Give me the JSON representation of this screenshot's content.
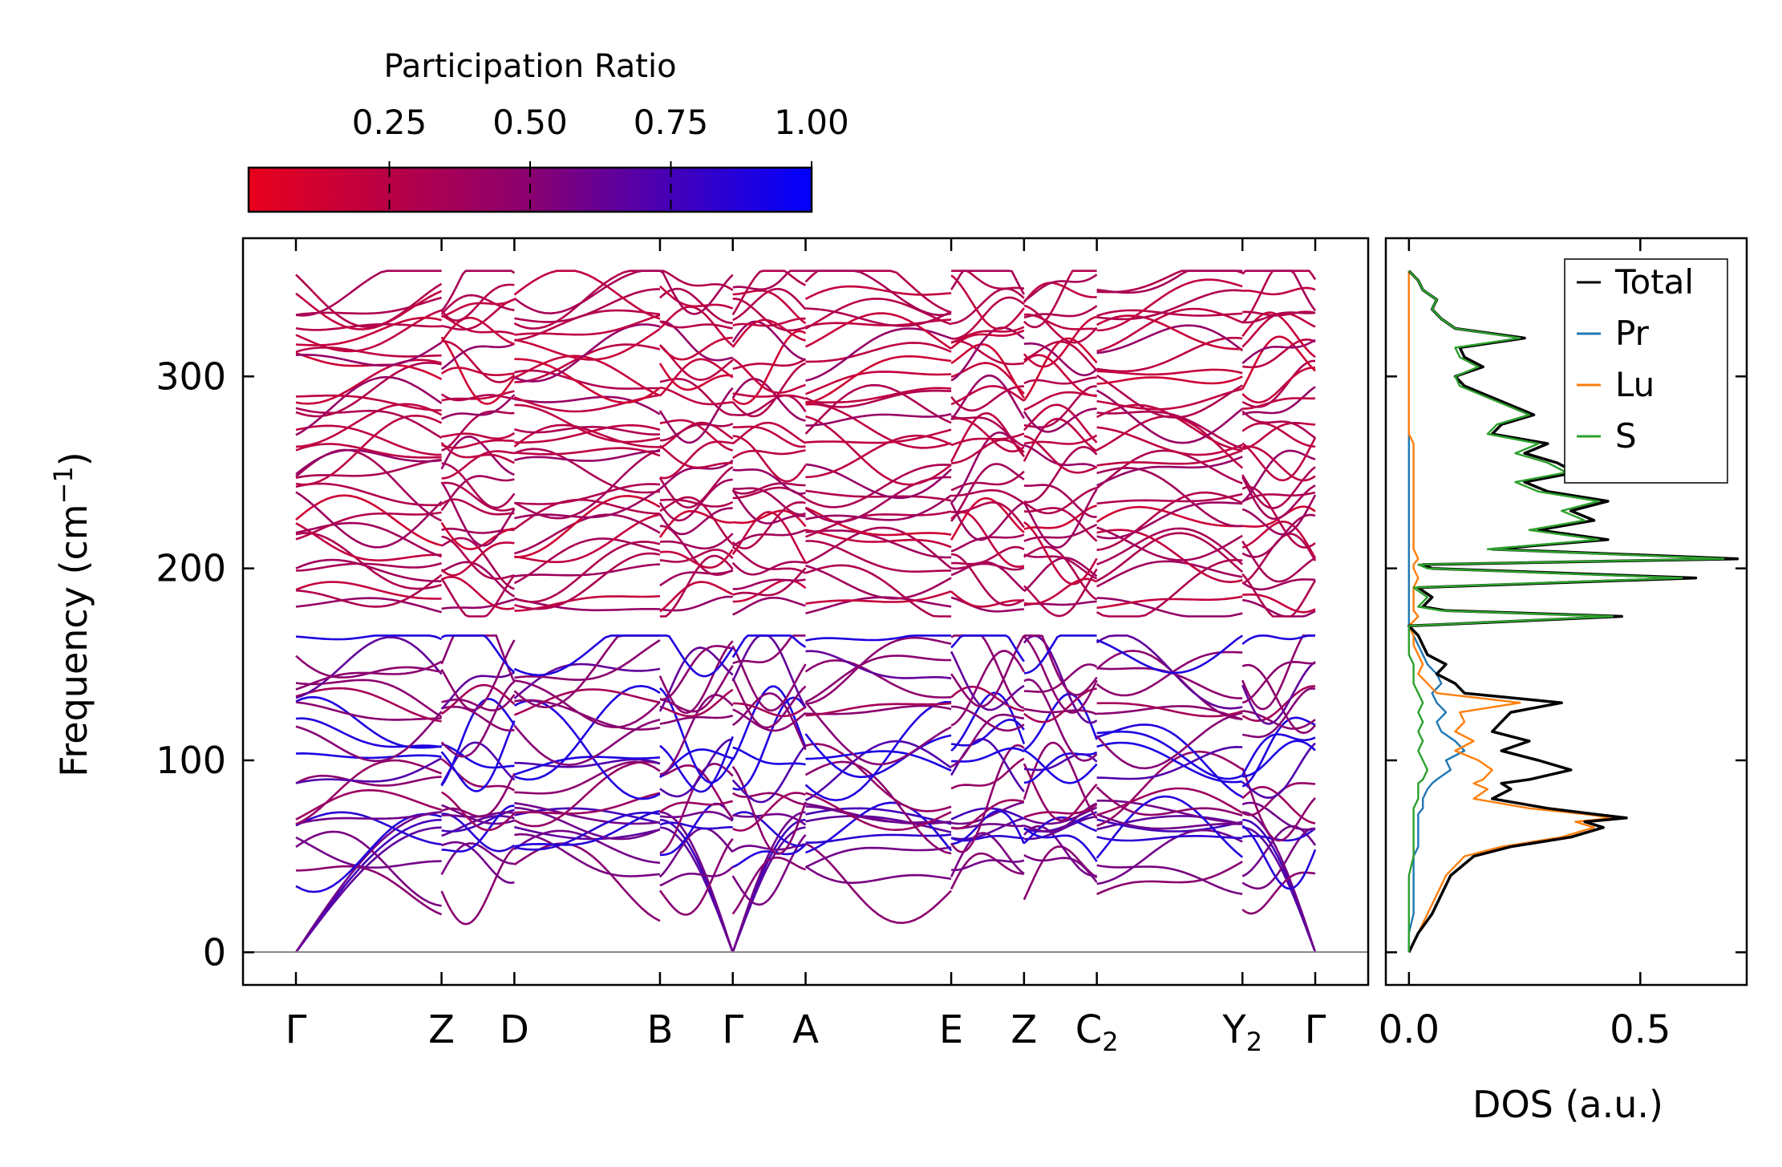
{
  "chart_data": {
    "type": "line",
    "colorbar": {
      "title": "Participation Ratio",
      "ticks": [
        "0.25",
        "0.50",
        "0.75",
        "1.00"
      ],
      "tick_values": [
        0.25,
        0.5,
        0.75,
        1.0
      ],
      "range": [
        0.0,
        1.0
      ],
      "color_low": "#e8001c",
      "color_mid": "#8a0070",
      "color_high": "#0000ff"
    },
    "bands": {
      "ylabel": "Frequency (cm",
      "ylabel_sup": "−1",
      "ylabel_close": ")",
      "ylim": [
        -17,
        372
      ],
      "yticks": [
        0,
        100,
        200,
        300
      ],
      "ytick_labels": [
        "0",
        "100",
        "200",
        "300"
      ],
      "kpoints": [
        {
          "label": "Γ",
          "sub": "",
          "x": 0.0
        },
        {
          "label": "Z",
          "sub": "",
          "x": 1.0
        },
        {
          "label": "D",
          "sub": "",
          "x": 1.5
        },
        {
          "label": "B",
          "sub": "",
          "x": 2.5
        },
        {
          "label": "Γ",
          "sub": "",
          "x": 3.0
        },
        {
          "label": "A",
          "sub": "",
          "x": 3.5
        },
        {
          "label": "E",
          "sub": "",
          "x": 4.5
        },
        {
          "label": "Z",
          "sub": "",
          "x": 5.0
        },
        {
          "label": "C",
          "sub": "2",
          "x": 5.5
        },
        {
          "label": "Y",
          "sub": "2",
          "x": 6.5
        },
        {
          "label": "Γ",
          "sub": "",
          "x": 7.0
        }
      ],
      "segments": [
        {
          "from": "Γ",
          "to": "Z"
        },
        {
          "from": "Z",
          "to": "D"
        },
        {
          "from": "D",
          "to": "B"
        },
        {
          "from": "B",
          "to": "Γ"
        },
        {
          "from": "Γ",
          "to": "A"
        },
        {
          "from": "A",
          "to": "E"
        },
        {
          "from": "E",
          "to": "Z"
        },
        {
          "from": "Z",
          "to": "C2"
        },
        {
          "from": "C2",
          "to": "Y2"
        },
        {
          "from": "Y2",
          "to": "Γ"
        }
      ],
      "low_branch_gamma": [
        0,
        0,
        0
      ],
      "high_group_range": [
        175,
        355
      ],
      "low_group_range": [
        0,
        165
      ],
      "gap": [
        165,
        175
      ]
    },
    "dos": {
      "xlabel": "DOS (a.u.)",
      "xlim": [
        -0.05,
        0.73
      ],
      "xticks": [
        0.0,
        0.5
      ],
      "xtick_labels": [
        "0.0",
        "0.5"
      ],
      "ylim": [
        -17,
        372
      ],
      "legend": [
        {
          "name": "Total",
          "color": "#000000"
        },
        {
          "name": "Pr",
          "color": "#1f77b4"
        },
        {
          "name": "Lu",
          "color": "#ff7f0e"
        },
        {
          "name": "S",
          "color": "#2ca02c"
        }
      ],
      "series": {
        "freq": [
          0,
          10,
          20,
          30,
          40,
          50,
          55,
          60,
          65,
          68,
          70,
          72,
          75,
          80,
          85,
          88,
          90,
          95,
          100,
          105,
          110,
          115,
          120,
          125,
          130,
          135,
          140,
          145,
          150,
          155,
          160,
          165,
          170,
          175,
          178,
          180,
          185,
          190,
          195,
          200,
          202,
          205,
          210,
          215,
          220,
          225,
          230,
          235,
          240,
          245,
          250,
          255,
          260,
          265,
          270,
          275,
          280,
          285,
          290,
          295,
          300,
          305,
          310,
          315,
          320,
          325,
          330,
          335,
          340,
          345,
          350,
          355
        ],
        "Total": [
          0.0,
          0.02,
          0.05,
          0.07,
          0.09,
          0.14,
          0.22,
          0.35,
          0.42,
          0.38,
          0.47,
          0.4,
          0.3,
          0.18,
          0.22,
          0.2,
          0.26,
          0.35,
          0.28,
          0.2,
          0.26,
          0.18,
          0.2,
          0.22,
          0.33,
          0.12,
          0.1,
          0.06,
          0.08,
          0.04,
          0.03,
          0.02,
          0.0,
          0.46,
          0.08,
          0.03,
          0.05,
          0.02,
          0.62,
          0.05,
          0.03,
          0.71,
          0.18,
          0.43,
          0.28,
          0.4,
          0.35,
          0.43,
          0.3,
          0.25,
          0.36,
          0.32,
          0.25,
          0.3,
          0.18,
          0.2,
          0.27,
          0.22,
          0.17,
          0.12,
          0.1,
          0.16,
          0.12,
          0.11,
          0.25,
          0.1,
          0.07,
          0.05,
          0.06,
          0.03,
          0.02,
          0.0
        ],
        "Pr": [
          0.0,
          0.0,
          0.01,
          0.01,
          0.01,
          0.01,
          0.02,
          0.02,
          0.02,
          0.02,
          0.02,
          0.02,
          0.03,
          0.03,
          0.04,
          0.05,
          0.06,
          0.09,
          0.08,
          0.12,
          0.1,
          0.07,
          0.06,
          0.08,
          0.06,
          0.05,
          0.07,
          0.06,
          0.04,
          0.03,
          0.02,
          0.01,
          0.0,
          0.0,
          0.0,
          0.0,
          0.0,
          0.0,
          0.0,
          0.0,
          0.0,
          0.0,
          0.0,
          0.0,
          0.0,
          0.0,
          0.0,
          0.0,
          0.0,
          0.0,
          0.0,
          0.0,
          0.0,
          0.0,
          0.0,
          0.0,
          0.0,
          0.0,
          0.0,
          0.0,
          0.0,
          0.0,
          0.0,
          0.0,
          0.0,
          0.0,
          0.0,
          0.0,
          0.0,
          0.0,
          0.0,
          0.0
        ],
        "Lu": [
          0.0,
          0.02,
          0.04,
          0.06,
          0.08,
          0.12,
          0.2,
          0.33,
          0.4,
          0.36,
          0.44,
          0.38,
          0.26,
          0.14,
          0.17,
          0.14,
          0.16,
          0.18,
          0.15,
          0.1,
          0.14,
          0.1,
          0.12,
          0.11,
          0.24,
          0.06,
          0.04,
          0.02,
          0.03,
          0.02,
          0.01,
          0.01,
          0.0,
          0.02,
          0.01,
          0.01,
          0.01,
          0.01,
          0.02,
          0.01,
          0.01,
          0.02,
          0.01,
          0.01,
          0.01,
          0.01,
          0.01,
          0.01,
          0.01,
          0.01,
          0.01,
          0.01,
          0.01,
          0.01,
          0.0,
          0.0,
          0.0,
          0.0,
          0.0,
          0.0,
          0.0,
          0.0,
          0.0,
          0.0,
          0.0,
          0.0,
          0.0,
          0.0,
          0.0,
          0.0,
          0.0,
          0.0
        ],
        "S": [
          0.0,
          0.0,
          0.0,
          0.0,
          0.0,
          0.01,
          0.01,
          0.01,
          0.01,
          0.01,
          0.01,
          0.01,
          0.01,
          0.02,
          0.02,
          0.02,
          0.03,
          0.04,
          0.03,
          0.02,
          0.03,
          0.02,
          0.03,
          0.02,
          0.03,
          0.02,
          0.01,
          0.01,
          0.01,
          0.0,
          0.0,
          0.0,
          0.0,
          0.44,
          0.07,
          0.02,
          0.04,
          0.01,
          0.59,
          0.04,
          0.02,
          0.68,
          0.17,
          0.41,
          0.26,
          0.38,
          0.33,
          0.41,
          0.28,
          0.23,
          0.34,
          0.3,
          0.23,
          0.28,
          0.17,
          0.19,
          0.26,
          0.21,
          0.16,
          0.11,
          0.1,
          0.15,
          0.11,
          0.1,
          0.24,
          0.1,
          0.07,
          0.05,
          0.06,
          0.03,
          0.02,
          0.0
        ]
      }
    }
  }
}
